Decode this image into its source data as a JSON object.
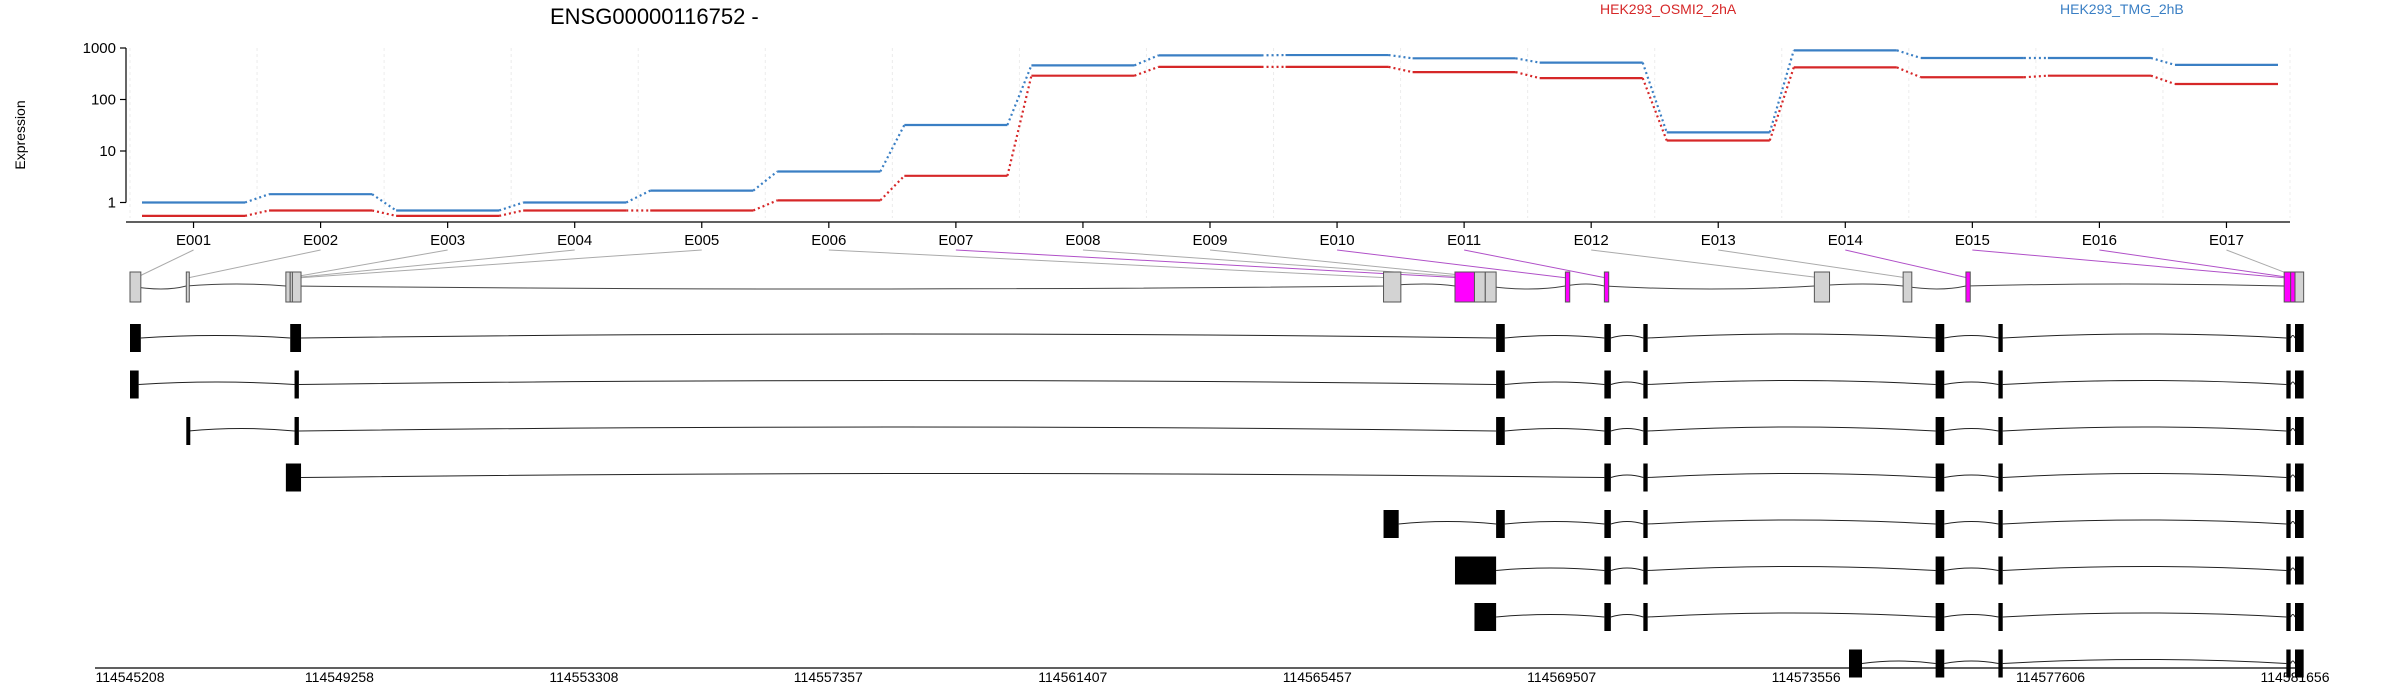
{
  "chart_data": {
    "type": "line",
    "title": "ENSG00000116752 -",
    "ylabel": "Expression",
    "y_scale": "log10",
    "y_ticks": [
      "1",
      "10",
      "100",
      "1000"
    ],
    "ylim": [
      0.5,
      1000
    ],
    "categories": [
      "E001",
      "E002",
      "E003",
      "E004",
      "E005",
      "E006",
      "E007",
      "E008",
      "E009",
      "E010",
      "E011",
      "E012",
      "E013",
      "E014",
      "E015",
      "E016",
      "E017"
    ],
    "series": [
      {
        "name": "HEK293_OSMI2_2hA",
        "color": "#d62728",
        "values": [
          0.55,
          0.7,
          0.55,
          0.7,
          0.7,
          1.1,
          3.3,
          290,
          430,
          430,
          340,
          260,
          16,
          420,
          270,
          290,
          200
        ]
      },
      {
        "name": "HEK293_TMG_2hB",
        "color": "#3a7fc4",
        "values": [
          1.0,
          1.45,
          0.7,
          1.0,
          1.7,
          4.0,
          32,
          460,
          720,
          730,
          630,
          520,
          23,
          900,
          640,
          640,
          470
        ]
      }
    ],
    "gene_model": {
      "exon_colors": {
        "normal": "#d3d3d3",
        "highlighted": "#ff00ff"
      },
      "highlighted_exons": [
        "E007",
        "E010",
        "E011",
        "E014",
        "E015",
        "E016"
      ],
      "genomic_ticks": [
        "114545208",
        "114549258",
        "114553308",
        "114557357",
        "114561407",
        "114565457",
        "114569507",
        "114573556",
        "114577606",
        "114581656"
      ]
    }
  }
}
